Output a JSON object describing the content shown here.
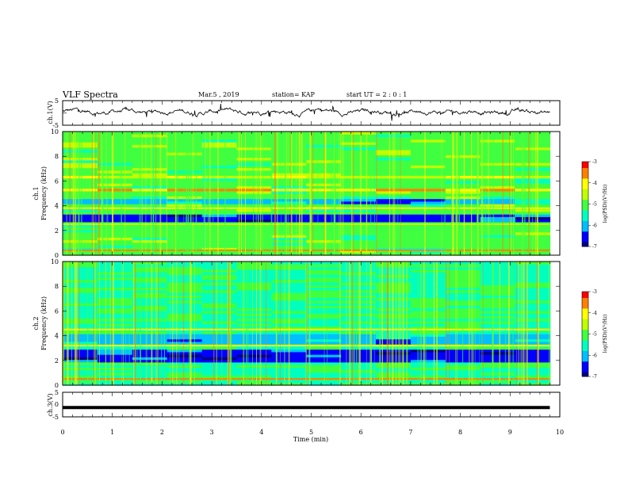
{
  "header": {
    "title": "VLF Spectra",
    "date": "Mar.5 , 2019",
    "station": "station= KAP",
    "start": "start UT = 2 : 0 : 1"
  },
  "colors": {
    "line": "#000000",
    "background": "#ffffff",
    "colormap": [
      "#00007f",
      "#0000ff",
      "#00bfff",
      "#00ffbf",
      "#40ff40",
      "#c0ff00",
      "#ffff00",
      "#ff8000",
      "#ff0000"
    ]
  },
  "chart_data": [
    {
      "type": "line",
      "name": "ch1-waveform",
      "ylabel": "ch.1(V)",
      "ylim": [
        -5,
        5
      ],
      "yticks": [
        "5",
        "-5"
      ],
      "xlim": [
        0,
        10
      ],
      "approx_mean": 0.5,
      "approx_amplitude": 1.5,
      "grid": false
    },
    {
      "type": "heatmap",
      "name": "ch1-spectrogram",
      "ylabel": "ch.1\nFrequency (kHz)",
      "ylim": [
        0,
        10
      ],
      "yticks": [
        "0",
        "2",
        "4",
        "6",
        "8",
        "10"
      ],
      "xlim": [
        0,
        10
      ],
      "time_end_min": 9.8,
      "colorbar": {
        "label": "log(PSD)(V²/Hz)",
        "range": [
          -7,
          -3
        ],
        "ticks": [
          "-3",
          "-4",
          "-5",
          "-6",
          "-7"
        ]
      },
      "features": [
        {
          "kind": "band",
          "freq_khz": [
            2.8,
            3.4
          ],
          "level": -6.5
        },
        {
          "kind": "band",
          "freq_khz": [
            4.2,
            4.6
          ],
          "level": -6.0
        },
        {
          "kind": "band",
          "freq_khz": [
            5.3,
            5.5
          ],
          "level": -3.8
        },
        {
          "kind": "band",
          "freq_khz": [
            6.3,
            6.5
          ],
          "level": -4.2
        },
        {
          "kind": "line",
          "freq_khz": 3.8,
          "level": -4.0
        },
        {
          "kind": "line",
          "freq_khz": 2.5,
          "level": -4.5
        },
        {
          "kind": "line",
          "freq_khz": 0.4,
          "level": -3.5
        },
        {
          "kind": "background",
          "freq_khz": [
            0,
            10
          ],
          "level": -5.0
        }
      ]
    },
    {
      "type": "heatmap",
      "name": "ch2-spectrogram",
      "ylabel": "ch.2\nFrequency (kHz)",
      "ylim": [
        0,
        10
      ],
      "yticks": [
        "0",
        "2",
        "4",
        "6",
        "8",
        "10"
      ],
      "xlim": [
        0,
        10
      ],
      "time_end_min": 9.8,
      "colorbar": {
        "label": "log(PSD)(V²/Hz)",
        "range": [
          -7,
          -3
        ],
        "ticks": [
          "-3",
          "-4",
          "-5",
          "-6",
          "-7"
        ]
      },
      "features": [
        {
          "kind": "band",
          "freq_khz": [
            1.8,
            3.0
          ],
          "level": -6.5
        },
        {
          "kind": "band",
          "freq_khz": [
            3.4,
            4.2
          ],
          "level": -6.0
        },
        {
          "kind": "line",
          "freq_khz": 3.2,
          "level": -4.0
        },
        {
          "kind": "line",
          "freq_khz": 4.5,
          "level": -4.2
        },
        {
          "kind": "line",
          "freq_khz": 0.5,
          "level": -3.5
        },
        {
          "kind": "background",
          "freq_khz": [
            0,
            10
          ],
          "level": -5.3
        }
      ]
    },
    {
      "type": "line",
      "name": "ch3-waveform",
      "ylabel": "ch.3(V)",
      "ylim": [
        -5,
        5
      ],
      "yticks": [
        "5",
        "0",
        "-5"
      ],
      "xlim": [
        0,
        10
      ],
      "constant_value": -1.2,
      "grid": false
    }
  ],
  "xaxis": {
    "label": "Time (min)",
    "ticks": [
      "0",
      "1",
      "2",
      "3",
      "4",
      "5",
      "6",
      "7",
      "8",
      "9",
      "10"
    ]
  }
}
